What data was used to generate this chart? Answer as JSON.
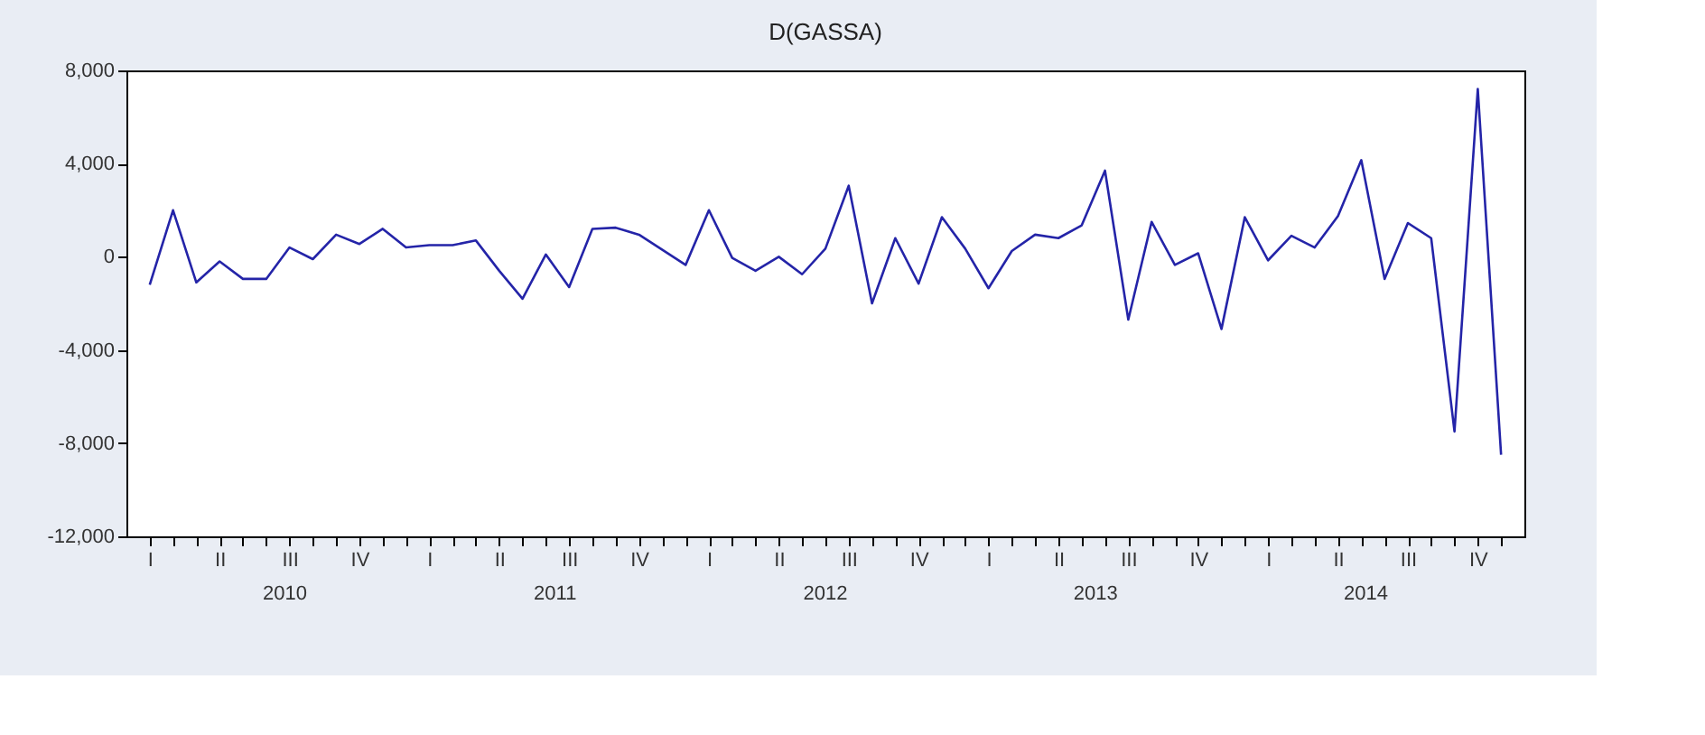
{
  "chart_data": {
    "type": "line",
    "title": "D(GASSA)",
    "categories": [
      "I",
      null,
      null,
      "II",
      null,
      null,
      "III",
      null,
      null,
      "IV",
      null,
      null,
      "I",
      null,
      null,
      "II",
      null,
      null,
      "III",
      null,
      null,
      "IV",
      null,
      null,
      "I",
      null,
      null,
      "II",
      null,
      null,
      "III",
      null,
      null,
      "IV",
      null,
      null,
      "I",
      null,
      null,
      "II",
      null,
      null,
      "III",
      null,
      null,
      "IV",
      null,
      null,
      "I",
      null,
      null,
      "II",
      null,
      null,
      "III",
      null,
      null,
      "IV",
      null
    ],
    "series": [
      {
        "color": "#2424a8",
        "values": [
          -1200,
          2000,
          -1100,
          -200,
          -950,
          -950,
          400,
          -100,
          950,
          550,
          1200,
          400,
          500,
          500,
          700,
          -600,
          -1800,
          100,
          -1300,
          1200,
          1250,
          950,
          300,
          -350,
          2000,
          -50,
          -600,
          0,
          -750,
          350,
          3050,
          -2000,
          800,
          -1150,
          1700,
          350,
          -1350,
          250,
          950,
          800,
          1350,
          3700,
          -2700,
          1500,
          -350,
          150,
          -3100,
          1700,
          -150,
          900,
          400,
          1750,
          4150,
          -950,
          1450,
          800,
          -7500,
          7200,
          -8500
        ]
      }
    ],
    "annotations": [
      "2010",
      "2011",
      "2012",
      "2013",
      "2014"
    ],
    "ylim": [
      -12000,
      8000
    ],
    "yticks": [
      {
        "value": -12000,
        "label": "-12,000"
      },
      {
        "value": -8000,
        "label": "-8,000"
      },
      {
        "value": -4000,
        "label": "-4,000"
      },
      {
        "value": 0,
        "label": "0"
      },
      {
        "value": 4000,
        "label": "4,000"
      },
      {
        "value": 8000,
        "label": "8,000"
      }
    ],
    "grid": false,
    "legend": false,
    "marker": "none",
    "line_style": "solid"
  }
}
